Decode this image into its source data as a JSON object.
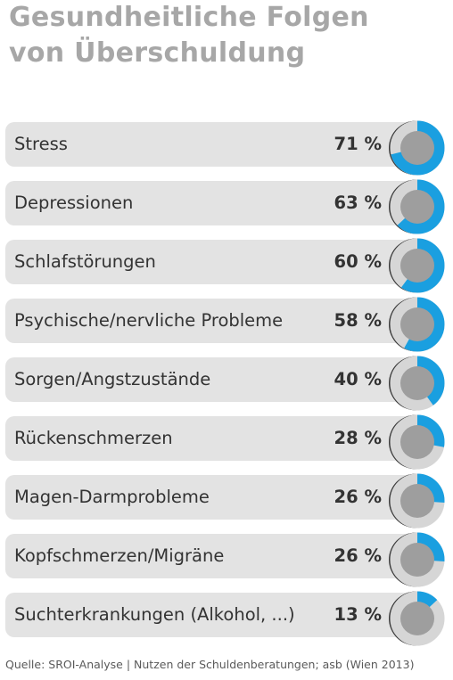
{
  "colors": {
    "accent": "#1a9fe0",
    "ring_gray": "#d6d6d6",
    "hub": "#9e9e9e",
    "bar": "#e3e3e3",
    "title": "#a7a7a7"
  },
  "title": {
    "line1": "Gesundheitliche Folgen",
    "line2": "von Überschuldung"
  },
  "source": "Quelle: SROI-Analyse | Nutzen der Schuldenberatungen; asb (Wien 2013)",
  "chart_data": {
    "type": "bar",
    "title": "Gesundheitliche Folgen von Überschuldung",
    "categories": [
      "Stress",
      "Depressionen",
      "Schlafstörungen",
      "Psychische/nervliche Probleme",
      "Sorgen/Angstzustände",
      "Rückenschmerzen",
      "Magen-Darmprobleme",
      "Kopfschmerzen/Migräne",
      "Suchterkrankungen (Alkohol, ...)"
    ],
    "values": [
      71,
      63,
      60,
      58,
      40,
      28,
      26,
      26,
      13
    ],
    "value_labels": [
      "71 %",
      "63 %",
      "60 %",
      "58 %",
      "40 %",
      "28 %",
      "26 %",
      "26 %",
      "13 %"
    ],
    "unit": "%",
    "ylim": [
      0,
      100
    ]
  }
}
